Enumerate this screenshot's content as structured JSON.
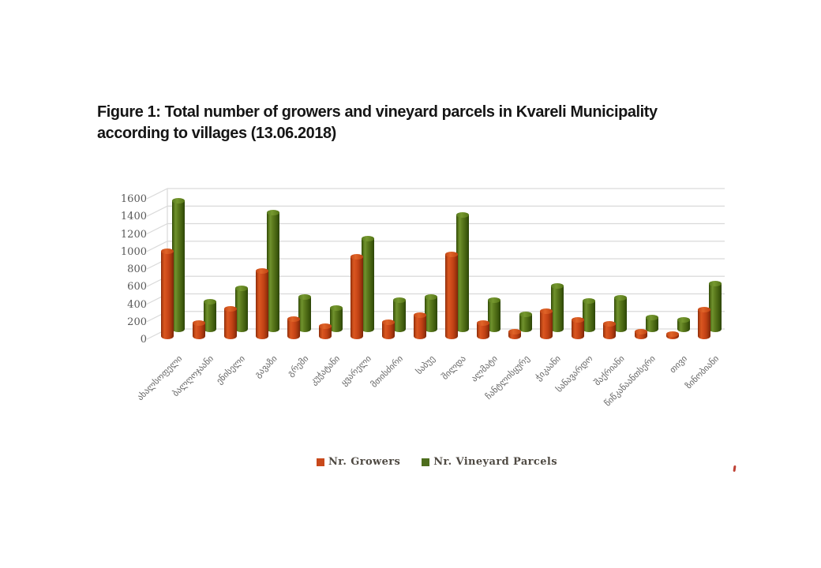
{
  "title": {
    "line1": "Figure 1: Total number of growers and vineyard parcels in Kvareli Municipality",
    "line2": "according to villages (13.06.2018)"
  },
  "chart_data": {
    "type": "bar",
    "style": "3d-cylinder",
    "title": "Figure 1: Total number of growers and vineyard parcels in Kvareli Municipality according to villages (13.06.2018)",
    "categories": [
      "ახალსოფელი",
      "ბალღოჯაანი",
      "ენისელი",
      "გავაზი",
      "გრემი",
      "კუჭატანი",
      "ყვარელი",
      "მთისძირი",
      "საბუე",
      "შილდა",
      "ალმატი",
      "ჩანტლისყურე",
      "ჭიკაანი",
      "სანავარდო",
      "შაქრიანი",
      "წიწკანაანთსერი",
      "თივი",
      "ზინობიანი"
    ],
    "series": [
      {
        "name": "Nr. Growers",
        "color": "#C8491B",
        "values": [
          1000,
          190,
          350,
          780,
          230,
          150,
          940,
          195,
          280,
          960,
          190,
          85,
          325,
          220,
          175,
          90,
          60,
          335
        ]
      },
      {
        "name": "Nr. Vineyard Parcels",
        "color": "#4E6E1E",
        "values": [
          1550,
          360,
          520,
          1410,
          420,
          290,
          1100,
          380,
          420,
          1380,
          380,
          210,
          545,
          370,
          410,
          180,
          150,
          575
        ]
      }
    ],
    "xlabel": "",
    "ylabel": "",
    "yticks": [
      0,
      200,
      400,
      600,
      800,
      1000,
      1200,
      1400,
      1600
    ],
    "ylim": [
      0,
      1600
    ],
    "grid": true,
    "legend_position": "bottom"
  },
  "legend": {
    "items": [
      {
        "label": "Nr. Growers",
        "color": "#C8491B"
      },
      {
        "label": "Nr. Vineyard Parcels",
        "color": "#4E6E1E"
      }
    ]
  },
  "axis_colors": {
    "gridline": "#d9d9d9",
    "tick_text": "#595959",
    "category_text": "#666666"
  }
}
